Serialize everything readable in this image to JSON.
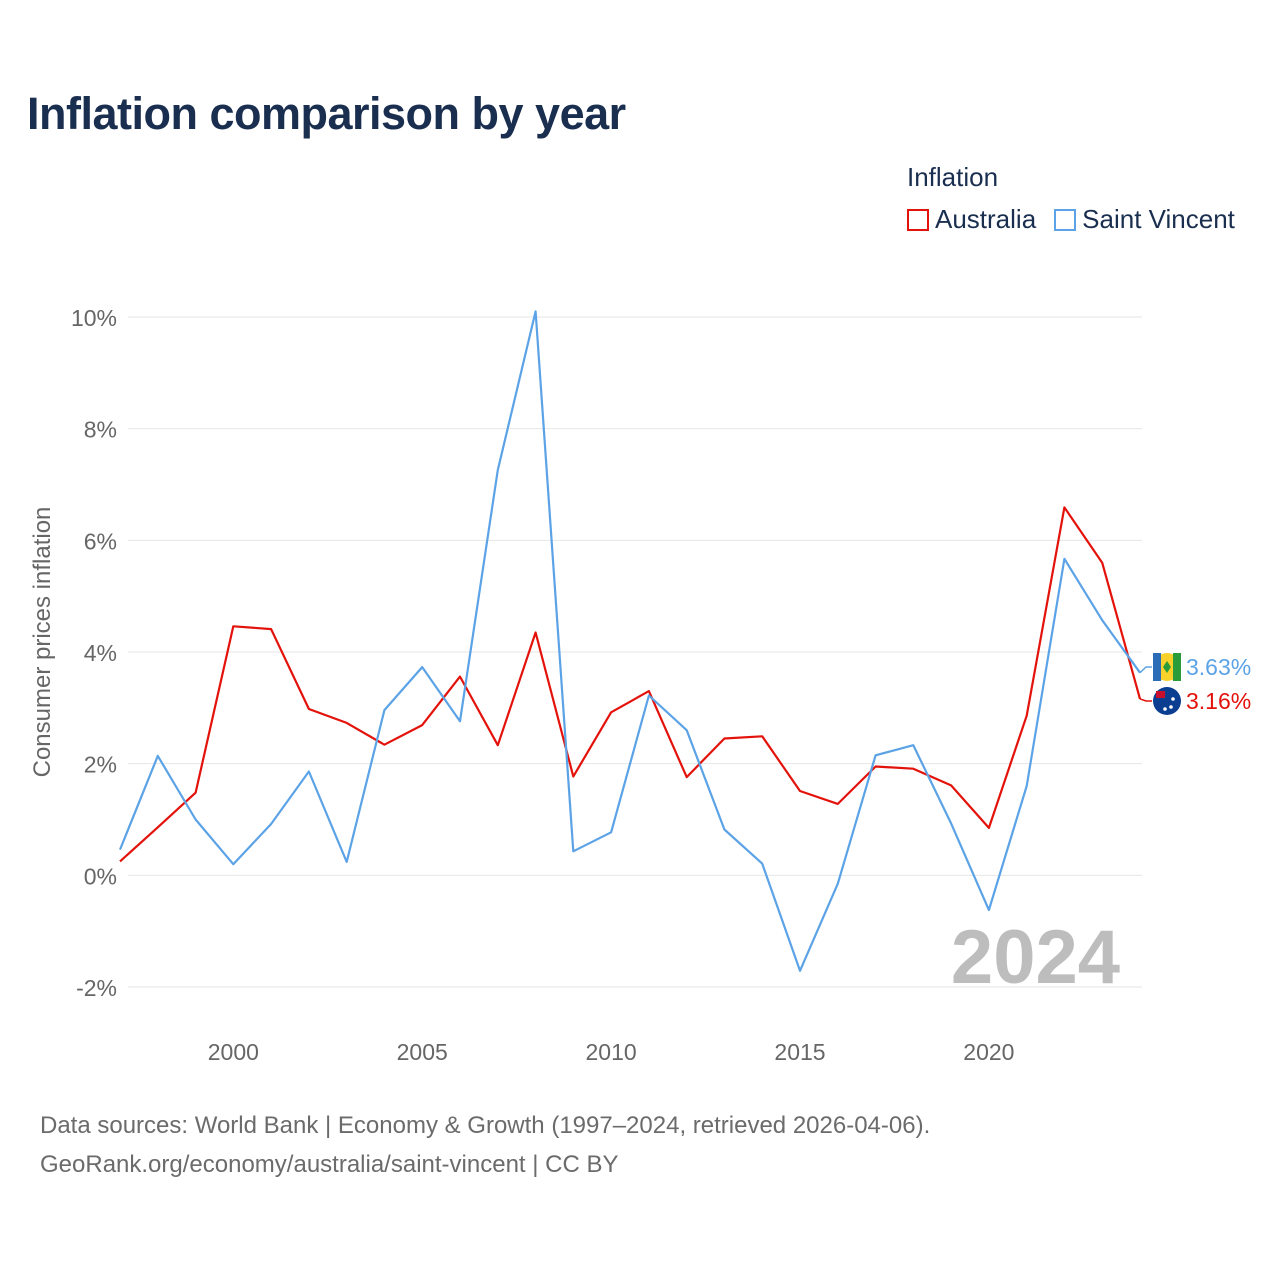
{
  "title": "Inflation comparison by year",
  "legend": {
    "title": "Inflation",
    "items": [
      {
        "label": "Australia",
        "color": "#e3120b"
      },
      {
        "label": "Saint Vincent",
        "color": "#5ba3e6"
      }
    ]
  },
  "footer": {
    "line1": "Data sources: World Bank | Economy & Growth (1997–2024, retrieved 2026-04-06).",
    "line2": "GeoRank.org/economy/australia/saint-vincent | CC BY"
  },
  "chart_data": {
    "type": "line",
    "title": "Inflation comparison by year",
    "xlabel": "",
    "ylabel": "Consumer prices inflation",
    "year_watermark": "2024",
    "x": [
      1997,
      1998,
      1999,
      2000,
      2001,
      2002,
      2003,
      2004,
      2005,
      2006,
      2007,
      2008,
      2009,
      2010,
      2011,
      2012,
      2013,
      2014,
      2015,
      2016,
      2017,
      2018,
      2019,
      2020,
      2021,
      2022,
      2023,
      2024
    ],
    "xlim": [
      1997,
      2024
    ],
    "ylim": [
      -2,
      10
    ],
    "x_ticks": [
      2000,
      2005,
      2010,
      2015,
      2020
    ],
    "y_ticks": [
      -2,
      0,
      2,
      4,
      6,
      8,
      10
    ],
    "y_tick_labels": [
      "-2%",
      "0%",
      "2%",
      "4%",
      "6%",
      "8%",
      "10%"
    ],
    "grid": true,
    "series": [
      {
        "name": "Australia",
        "color": "#e3120b",
        "end_label": "3.16%",
        "values": [
          0.25,
          0.86,
          1.48,
          4.46,
          4.41,
          2.98,
          2.73,
          2.34,
          2.69,
          3.56,
          2.33,
          4.35,
          1.77,
          2.92,
          3.3,
          1.76,
          2.45,
          2.49,
          1.51,
          1.28,
          1.95,
          1.91,
          1.61,
          0.85,
          2.86,
          6.59,
          5.6,
          3.16
        ]
      },
      {
        "name": "Saint Vincent",
        "color": "#5ba3e6",
        "end_label": "3.63%",
        "values": [
          0.46,
          2.14,
          1.0,
          0.2,
          0.92,
          1.86,
          0.24,
          2.96,
          3.73,
          2.76,
          7.26,
          10.1,
          0.43,
          0.77,
          3.22,
          2.6,
          0.82,
          0.21,
          -1.71,
          -0.15,
          2.15,
          2.33,
          0.93,
          -0.62,
          1.6,
          5.67,
          4.57,
          3.63
        ]
      }
    ]
  }
}
